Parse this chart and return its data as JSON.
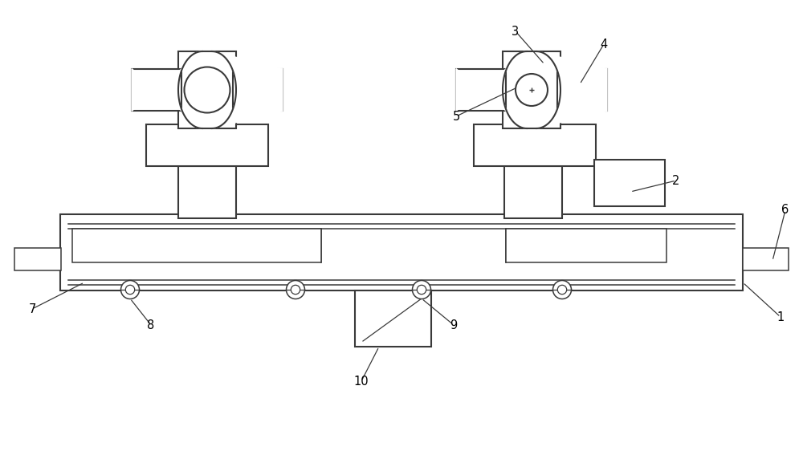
{
  "bg_color": "#ffffff",
  "line_color": "#3a3a3a",
  "line_width": 1.5,
  "figure_width": 10.0,
  "figure_height": 5.67,
  "title": ""
}
